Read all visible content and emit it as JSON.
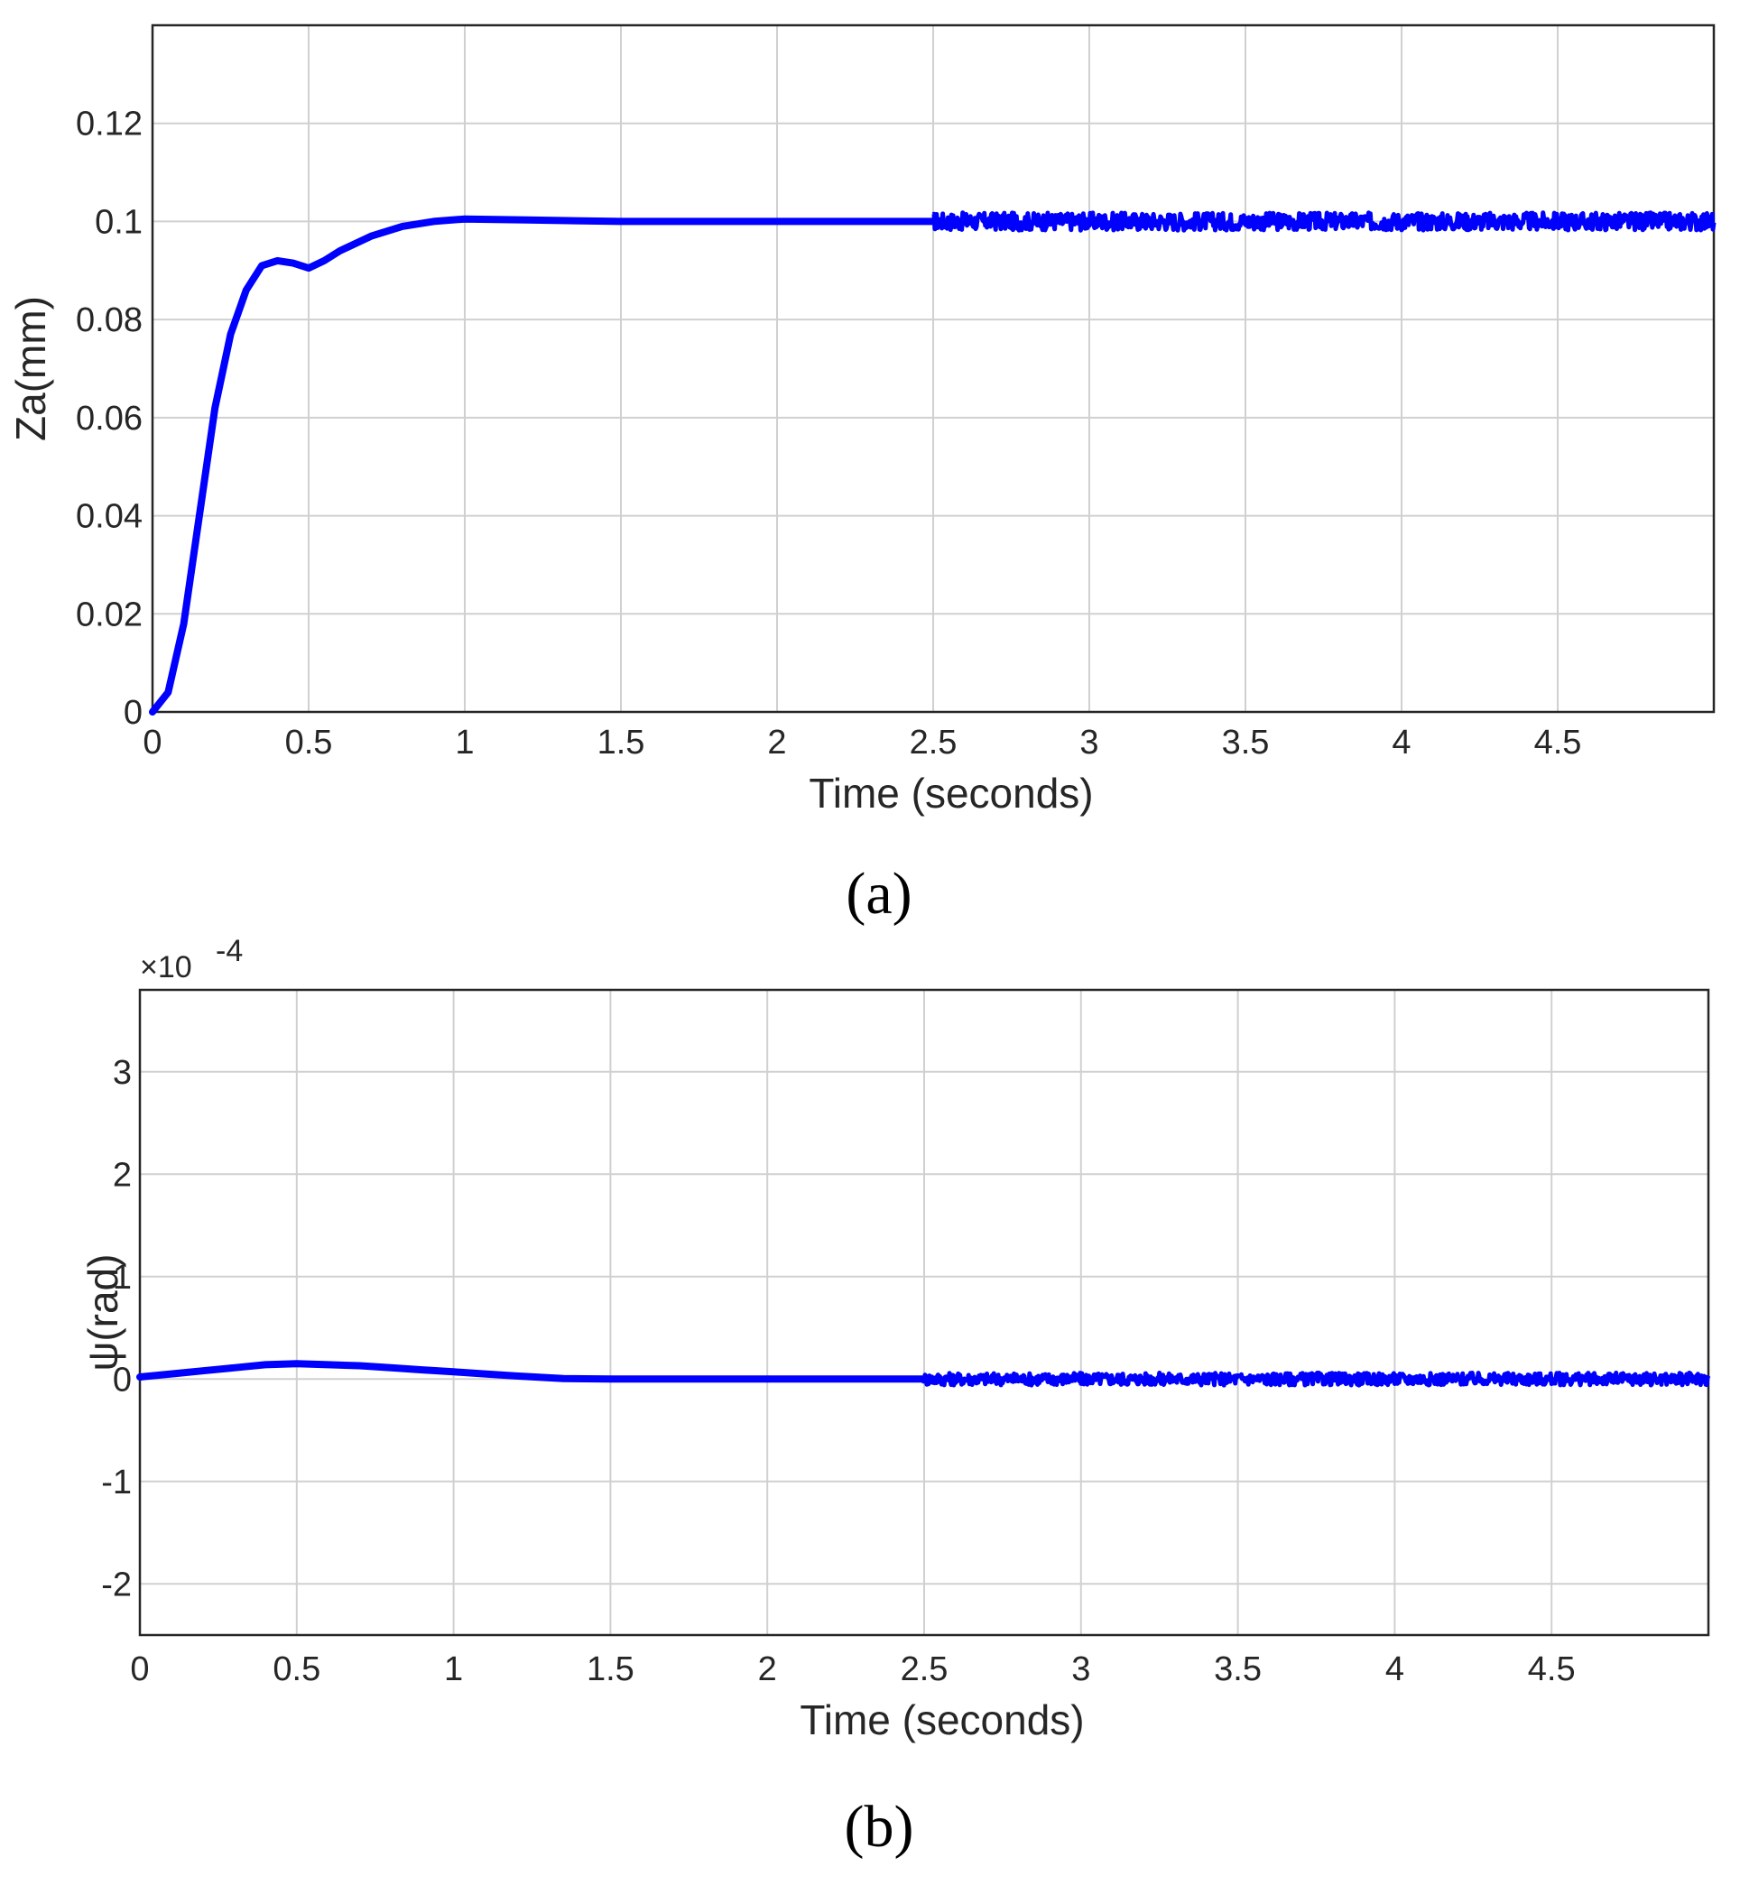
{
  "chart_data": [
    {
      "type": "line",
      "caption": "(a)",
      "xlabel": "Time (seconds)",
      "ylabel": "Za(mm)",
      "xlim": [
        0,
        5
      ],
      "ylim": [
        0,
        0.14
      ],
      "x_ticks": [
        "0",
        "0.5",
        "1",
        "1.5",
        "2",
        "2.5",
        "3",
        "3.5",
        "4",
        "4.5"
      ],
      "y_ticks": [
        "0",
        "0.02",
        "0.04",
        "0.06",
        "0.08",
        "0.1",
        "0.12"
      ],
      "grid": true,
      "series": [
        {
          "color": "#0000ff",
          "x": [
            0,
            0.05,
            0.1,
            0.15,
            0.2,
            0.25,
            0.3,
            0.35,
            0.4,
            0.45,
            0.5,
            0.55,
            0.6,
            0.7,
            0.8,
            0.9,
            1.0,
            1.2,
            1.5,
            2.0,
            2.5
          ],
          "y": [
            0,
            0.004,
            0.018,
            0.04,
            0.062,
            0.077,
            0.086,
            0.091,
            0.092,
            0.0915,
            0.0905,
            0.092,
            0.094,
            0.097,
            0.099,
            0.1,
            0.1005,
            0.1003,
            0.1,
            0.1,
            0.1
          ],
          "noise_after": 2.5,
          "noise_amplitude": 0.0018
        }
      ]
    },
    {
      "type": "line",
      "caption": "(b)",
      "xlabel": "Time (seconds)",
      "ylabel": "ψ(rad)",
      "exponent_label": "×10",
      "exponent_power": "-4",
      "xlim": [
        0,
        5
      ],
      "ylim": [
        -2.5,
        3.8
      ],
      "x_ticks": [
        "0",
        "0.5",
        "1",
        "1.5",
        "2",
        "2.5",
        "3",
        "3.5",
        "4",
        "4.5"
      ],
      "y_ticks": [
        "-2",
        "-1",
        "0",
        "1",
        "2",
        "3"
      ],
      "grid": true,
      "series": [
        {
          "color": "#0000ff",
          "x": [
            0,
            0.1,
            0.2,
            0.3,
            0.4,
            0.5,
            0.6,
            0.7,
            0.8,
            0.9,
            1.0,
            1.1,
            1.2,
            1.35,
            1.5,
            2.0,
            2.5
          ],
          "y": [
            0.02,
            0.05,
            0.08,
            0.11,
            0.14,
            0.15,
            0.14,
            0.13,
            0.11,
            0.09,
            0.07,
            0.05,
            0.03,
            0.005,
            0.0,
            0.0,
            0.0
          ],
          "noise_after": 2.5,
          "noise_amplitude": 0.06
        }
      ]
    }
  ]
}
